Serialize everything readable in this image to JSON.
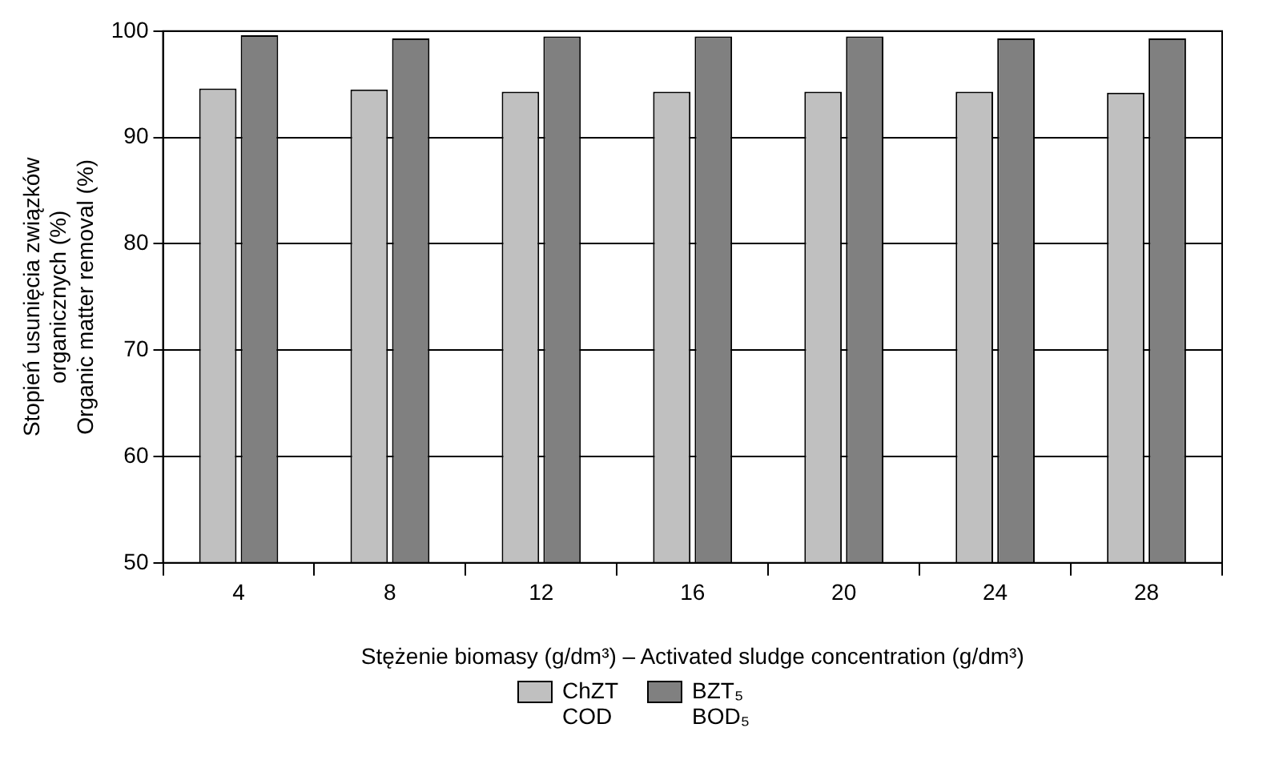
{
  "chart_data": {
    "type": "bar",
    "categories": [
      "4",
      "8",
      "12",
      "16",
      "20",
      "24",
      "28"
    ],
    "series": [
      {
        "name": "ChZT\nCOD",
        "color": "#c0c0c0",
        "values": [
          94.6,
          94.5,
          94.3,
          94.3,
          94.3,
          94.3,
          94.2
        ]
      },
      {
        "name": "BZT₅\nBOD₅",
        "color": "#808080",
        "values": [
          99.6,
          99.3,
          99.5,
          99.5,
          99.5,
          99.3,
          99.3
        ]
      }
    ],
    "xlabel": "Stężenie biomasy (g/dm³) – Activated sludge concentration (g/dm³)",
    "ylabel": "Stopień usunięcia związków\norganicznych (%)\nOrganic matter removal (%)",
    "ylim": [
      50,
      100
    ],
    "yticks": [
      50,
      60,
      70,
      80,
      90,
      100
    ],
    "grid": "y",
    "legend": "bottom"
  }
}
